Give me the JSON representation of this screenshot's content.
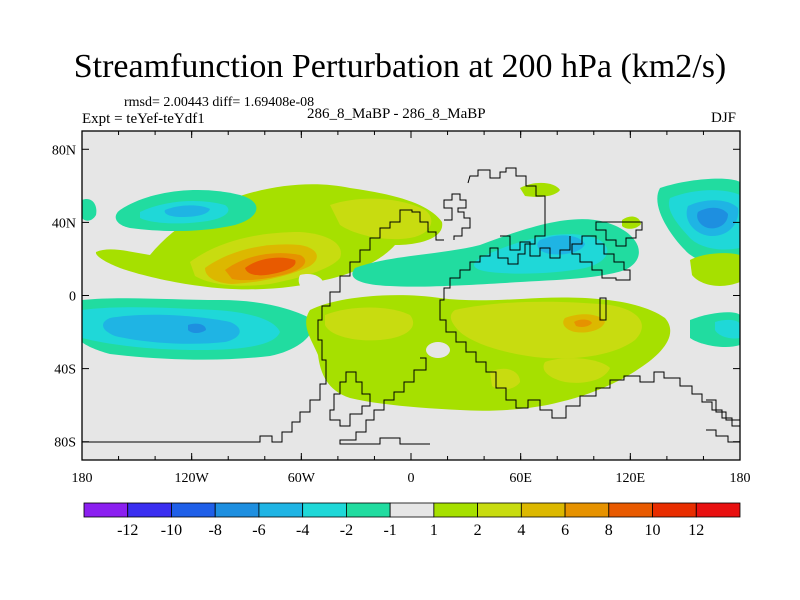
{
  "chart_data": {
    "type": "contour-map",
    "title": "Streamfunction Perturbation at 200 hPa (km2/s)",
    "stats": "rmsd= 2.00443 diff= 1.69408e-08",
    "experiment": "Expt = teYef-teYdf1",
    "center_label": "286_8_MaBP - 286_8_MaBP",
    "season": "DJF",
    "x_ticks": [
      "180",
      "120W",
      "60W",
      "0",
      "60E",
      "120E",
      "180"
    ],
    "y_ticks": [
      "80N",
      "40N",
      "0",
      "40S",
      "80S"
    ],
    "x_range": [
      -180,
      180
    ],
    "y_range": [
      -90,
      90
    ],
    "colorbar": {
      "labels": [
        "-12",
        "-10",
        "-8",
        "-6",
        "-4",
        "-2",
        "-1",
        "1",
        "2",
        "4",
        "6",
        "8",
        "10",
        "12"
      ],
      "colors": [
        "#8b1ff0",
        "#3a2ef0",
        "#1f5fe8",
        "#1e8fe0",
        "#1fb4e4",
        "#1fd8d8",
        "#21dca0",
        "#e6e6e6",
        "#a6e000",
        "#c8dc10",
        "#dcb800",
        "#e69200",
        "#e85a00",
        "#e82d00",
        "#e81010"
      ]
    },
    "colors": {
      "background_field": "#e6e6e6",
      "land_outline": "#000000"
    }
  }
}
